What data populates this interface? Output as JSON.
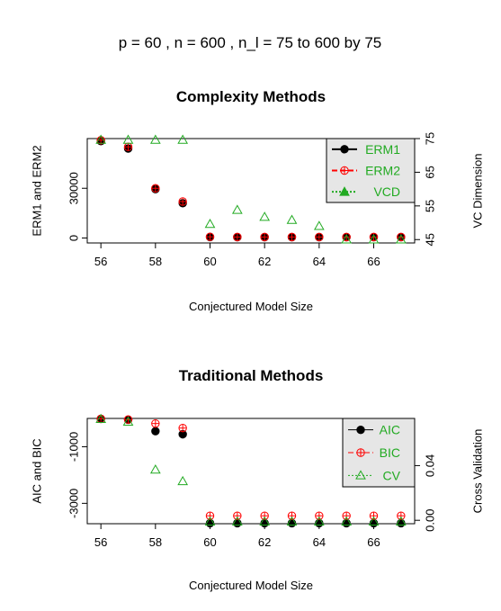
{
  "figure": {
    "main_title": "p =  60 ,  n =  600 , n_l =  75 to 600 by 75"
  },
  "chart_data": [
    {
      "type": "scatter",
      "title": "Complexity Methods",
      "xlabel": "Conjectured Model Size",
      "ylabel": "ERM1 and ERM2",
      "y2label": "VC Dimension",
      "xlim": [
        55.5,
        67.5
      ],
      "ylim": [
        -3000,
        60000
      ],
      "y2lim": [
        44,
        75
      ],
      "x_ticks": [
        "56",
        "58",
        "60",
        "62",
        "64",
        "66"
      ],
      "y_ticks": [
        "0",
        "30000"
      ],
      "y2_ticks": [
        "45",
        "55",
        "65",
        "75"
      ],
      "grid": false,
      "legend_position": "top-right",
      "legend": [
        "ERM1",
        "ERM2",
        "VCD"
      ],
      "x": [
        56,
        57,
        58,
        59,
        60,
        61,
        62,
        63,
        64,
        65,
        66,
        67
      ],
      "series": [
        {
          "name": "ERM1",
          "axis": "left",
          "color": "#000000",
          "marker": "filled-circle",
          "values": [
            58500,
            54000,
            29500,
            21000,
            600,
            500,
            500,
            500,
            500,
            500,
            500,
            500
          ]
        },
        {
          "name": "ERM2",
          "axis": "left",
          "color": "#ff0000",
          "marker": "circle-plus",
          "values": [
            59000,
            55000,
            30000,
            22000,
            700,
            600,
            600,
            600,
            600,
            600,
            600,
            600
          ]
        },
        {
          "name": "VCD",
          "axis": "right",
          "color": "#22aa22",
          "marker": "open-triangle",
          "values": [
            74.6,
            74.6,
            74.6,
            74.6,
            49.6,
            53.8,
            51.7,
            50.8,
            49.0,
            45.0,
            45.0,
            45.0
          ]
        }
      ]
    },
    {
      "type": "scatter",
      "title": "Traditional Methods",
      "xlabel": "Conjectured Model Size",
      "ylabel": "AIC and BIC",
      "y2label": "Cross Validation",
      "xlim": [
        55.5,
        67.5
      ],
      "ylim": [
        -3720,
        0
      ],
      "y2lim": [
        -0.0025,
        0.0745
      ],
      "x_ticks": [
        "56",
        "58",
        "60",
        "62",
        "64",
        "66"
      ],
      "y_ticks": [
        "-1000",
        "-3000"
      ],
      "y2_ticks": [
        "0.00",
        "0.04"
      ],
      "grid": false,
      "legend_position": "top-right",
      "legend": [
        "AIC",
        "BIC",
        "CV"
      ],
      "x": [
        56,
        57,
        58,
        59,
        60,
        61,
        62,
        63,
        64,
        65,
        66,
        67
      ],
      "series": [
        {
          "name": "AIC",
          "axis": "left",
          "color": "#000000",
          "marker": "filled-circle",
          "values": [
            -15,
            -45,
            -450,
            -560,
            -3700,
            -3700,
            -3700,
            -3700,
            -3700,
            -3700,
            -3700,
            -3700
          ]
        },
        {
          "name": "BIC",
          "axis": "left",
          "color": "#ff0000",
          "marker": "circle-plus",
          "values": [
            -15,
            -40,
            -180,
            -340,
            -3440,
            -3440,
            -3440,
            -3440,
            -3440,
            -3440,
            -3440,
            -3440
          ]
        },
        {
          "name": "CV",
          "axis": "right",
          "color": "#22aa22",
          "marker": "open-triangle",
          "values": [
            0.074,
            0.072,
            0.037,
            0.0285,
            -0.001,
            -0.001,
            -0.001,
            -0.001,
            -0.001,
            -0.001,
            -0.001,
            -0.001
          ]
        }
      ]
    }
  ]
}
